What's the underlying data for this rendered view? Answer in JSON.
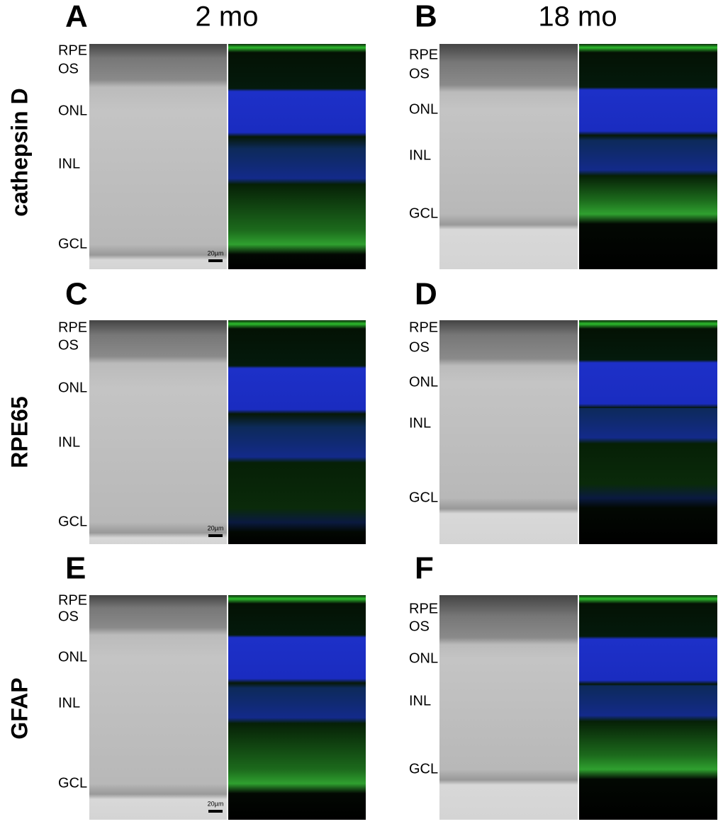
{
  "columns": [
    "2 mo",
    "18 mo"
  ],
  "rows": [
    "cathepsin D",
    "RPE65",
    "GFAP"
  ],
  "panels": [
    {
      "letter": "A",
      "layers": [
        "RPE",
        "OS",
        "ONL",
        "INL",
        "GCL"
      ],
      "scale_bar": "20µm"
    },
    {
      "letter": "B",
      "layers": [
        "RPE",
        "OS",
        "ONL",
        "INL",
        "GCL"
      ]
    },
    {
      "letter": "C",
      "layers": [
        "RPE",
        "OS",
        "ONL",
        "INL",
        "GCL"
      ],
      "scale_bar": "20µm"
    },
    {
      "letter": "D",
      "layers": [
        "RPE",
        "OS",
        "ONL",
        "INL",
        "GCL"
      ]
    },
    {
      "letter": "E",
      "layers": [
        "RPE",
        "OS",
        "ONL",
        "INL",
        "GCL"
      ],
      "scale_bar": "20µm"
    },
    {
      "letter": "F",
      "layers": [
        "RPE",
        "OS",
        "ONL",
        "INL",
        "GCL"
      ]
    }
  ]
}
